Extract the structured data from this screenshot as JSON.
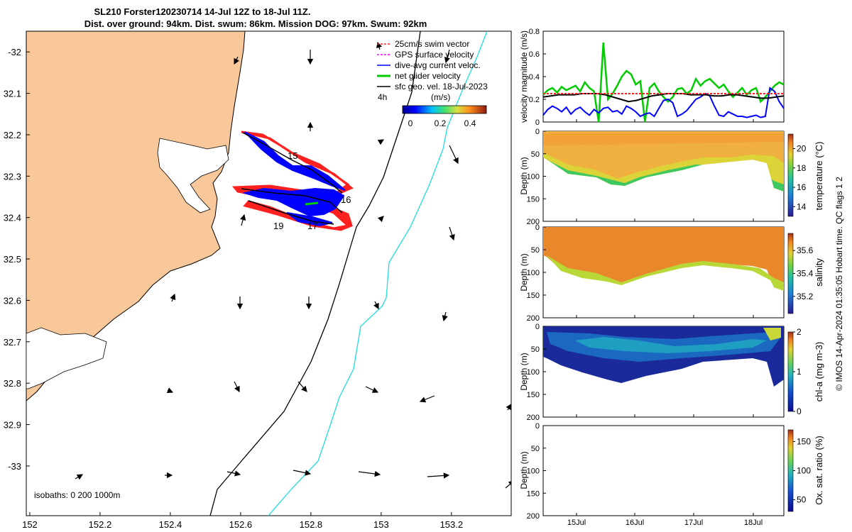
{
  "title": {
    "line1": "SL210 Forster120230714 14-Jul 12Z to 18-Jul 11Z.",
    "line2": "Dist. over ground: 94km. Dist. swum: 86km. Mission DOG: 97km. Swum: 92km"
  },
  "colors": {
    "land": "#f9c89a",
    "coast": "#000000",
    "isobath200": "#000000",
    "isobath1000": "#22dddd",
    "swim": "#ff2020",
    "gps": "#ff00ff",
    "dive_avg": "#0000ff",
    "net": "#00cc00",
    "sfc_geo": "#000000",
    "temp_warm": "#f0b040",
    "sal_warm": "#e88a20",
    "chl_low": "#1a2a9a"
  },
  "legend": {
    "items": [
      {
        "label": "25cm/s swim vector",
        "color": "#ff2020",
        "style": "dashed-arrow"
      },
      {
        "label": "GPS surface velocity",
        "color": "#ff00ff",
        "style": "dashed-arrow"
      },
      {
        "label": "dive-avg current veloc.",
        "color": "#0000ff",
        "style": "arrow"
      },
      {
        "label": "net glider velocity",
        "color": "#00cc00",
        "style": "thick-arrow"
      },
      {
        "label": "sfc geo. vel. 18-Jul-2023",
        "color": "#000000",
        "style": "arrow"
      }
    ],
    "time_label": "4h",
    "colorbar_label": "(m/s)",
    "colorbar_ticks": [
      "0",
      "0.2",
      "0.4"
    ]
  },
  "isobath_label": "isobaths: 0   200  1000m",
  "copyright": "© IMOS 14-Apr-2024 01:35:05 Hobart time. QC flags 1  2",
  "track_labels": [
    "15",
    "16",
    "19",
    "17"
  ],
  "chart_data": [
    {
      "type": "scatter",
      "name": "map",
      "x_ticks": [
        "152",
        "152.2",
        "152.4",
        "152.6",
        "152.8",
        "153",
        "153.2"
      ],
      "y_ticks": [
        "-32",
        "32.1",
        "32.2",
        "32.3",
        "32.4",
        "32.5",
        "32.6",
        "32.7",
        "32.8",
        "32.9",
        "-33"
      ],
      "xlim": [
        151.99,
        153.37
      ],
      "ylim": [
        -33.12,
        -31.95
      ]
    },
    {
      "type": "line",
      "name": "velocity",
      "ylabel": "velocity magnitude (m/s)",
      "y_ticks": [
        "0",
        "0.2",
        "0.4",
        "0.6",
        "0.8"
      ],
      "ylim": [
        0,
        0.8
      ],
      "series": [
        {
          "color": "#00cc00",
          "values": [
            0.24,
            0.28,
            0.3,
            0.26,
            0.31,
            0.28,
            0.3,
            0.32,
            0.27,
            0.35,
            0.3,
            0.27,
            0.0,
            0.7,
            0.2,
            0.25,
            0.32,
            0.4,
            0.45,
            0.42,
            0.33,
            0.36,
            0.0,
            0.3,
            0.34,
            0.27,
            0.22,
            0.18,
            0.22,
            0.29,
            0.3,
            0.25,
            0.28,
            0.38,
            0.32,
            0.36,
            0.38,
            0.34,
            0.3,
            0.33,
            0.27,
            0.22,
            0.26,
            0.3,
            0.24,
            0.28,
            0.3,
            0.18,
            0.22,
            0.27,
            0.32,
            0.35,
            0.33
          ]
        },
        {
          "color": "#0000ff",
          "values": [
            0.06,
            0.11,
            0.14,
            0.12,
            0.09,
            0.13,
            0.07,
            0.11,
            0.13,
            0.09,
            0.06,
            0.11,
            0.08,
            0.12,
            0.13,
            0.09,
            0.1,
            0.07,
            0.14,
            0.12,
            0.09,
            0.05,
            0.07,
            0.08,
            0.05,
            0.12,
            0.19,
            0.2,
            0.17,
            0.05,
            0.07,
            0.1,
            0.15,
            0.2,
            0.22,
            0.25,
            0.23,
            0.14,
            0.06,
            0.05,
            0.09,
            0.07,
            0.05,
            0.05,
            0.04,
            0.05,
            0.06,
            0.04,
            0.05,
            0.3,
            0.27,
            0.18,
            0.12
          ]
        },
        {
          "color": "#000000",
          "values": [
            0.22,
            0.23,
            0.24,
            0.24,
            0.24,
            0.25,
            0.25,
            0.25,
            0.24,
            0.22,
            0.2,
            0.18,
            0.19,
            0.21,
            0.23,
            0.24,
            0.25,
            0.25,
            0.25,
            0.24,
            0.24,
            0.24,
            0.23,
            0.23,
            0.24,
            0.24,
            0.23,
            0.22,
            0.21,
            0.21,
            0.22,
            0.23
          ]
        },
        {
          "color": "#ff2020",
          "values": [
            0.25,
            0.25,
            0.25,
            0.25,
            0.25,
            0.25,
            0.25,
            0.25,
            0.25,
            0.25,
            0.25,
            0.25
          ]
        }
      ]
    },
    {
      "type": "heatmap",
      "name": "temperature",
      "ylabel": "Depth (m)",
      "cbar_label": "temperature (°C)",
      "y_ticks": [
        "0",
        "50",
        "100",
        "150",
        "200"
      ],
      "cbar_ticks": [
        "14",
        "16",
        "18",
        "20"
      ],
      "cbar_range": [
        13,
        21.5
      ]
    },
    {
      "type": "heatmap",
      "name": "salinity",
      "ylabel": "Depth (m)",
      "cbar_label": "salinity",
      "y_ticks": [
        "0",
        "50",
        "100",
        "150",
        "200"
      ],
      "cbar_ticks": [
        "35.2",
        "35.4",
        "35.6"
      ],
      "cbar_range": [
        35.05,
        35.75
      ]
    },
    {
      "type": "heatmap",
      "name": "chlorophyll",
      "ylabel": "Depth (m)",
      "cbar_label": "chl-a (mg m-3)",
      "y_ticks": [
        "0",
        "50",
        "100",
        "150",
        "200"
      ],
      "cbar_ticks": [
        "0",
        "1",
        "2"
      ],
      "cbar_range": [
        0,
        2
      ]
    },
    {
      "type": "heatmap",
      "name": "oxygen",
      "ylabel": "Depth (m)",
      "cbar_label": "Ox. sat. ratio (%)",
      "y_ticks": [
        "0",
        "50",
        "100",
        "150",
        "200"
      ],
      "cbar_ticks": [
        "50",
        "100",
        "150"
      ],
      "cbar_range": [
        30,
        170
      ]
    }
  ],
  "x_time_ticks": [
    "15Jul",
    "16Jul",
    "17Jul",
    "18Jul"
  ]
}
